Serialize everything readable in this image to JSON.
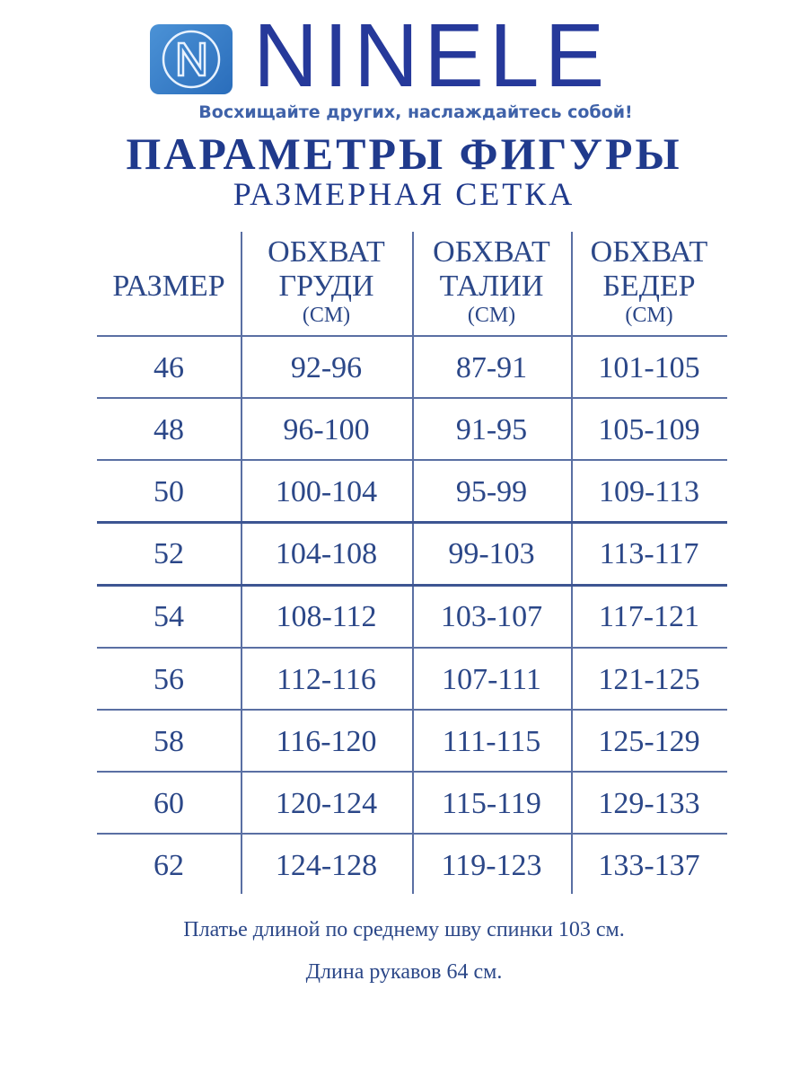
{
  "brand": {
    "name": "NINELE",
    "tagline": "Восхищайте других, наслаждайтесь собой!",
    "logo_icon": "n-in-circle-icon",
    "color": "#26399a"
  },
  "title": "ПАРАМЕТРЫ ФИГУРЫ",
  "subtitle": "РАЗМЕРНАЯ СЕТКА",
  "table": {
    "headers": [
      {
        "line1": "РАЗМЕР",
        "line2": "",
        "unit": ""
      },
      {
        "line1": "ОБХВАТ",
        "line2": "ГРУДИ",
        "unit": "(СМ)"
      },
      {
        "line1": "ОБХВАТ",
        "line2": "ТАЛИИ",
        "unit": "(СМ)"
      },
      {
        "line1": "ОБХВАТ",
        "line2": "БЕДЕР",
        "unit": "(СМ)"
      }
    ],
    "rows": [
      [
        "46",
        "92-96",
        "87-91",
        "101-105"
      ],
      [
        "48",
        "96-100",
        "91-95",
        "105-109"
      ],
      [
        "50",
        "100-104",
        "95-99",
        "109-113"
      ],
      [
        "52",
        "104-108",
        "99-103",
        "113-117"
      ],
      [
        "54",
        "108-112",
        "103-107",
        "117-121"
      ],
      [
        "56",
        "112-116",
        "107-111",
        "121-125"
      ],
      [
        "58",
        "116-120",
        "111-115",
        "125-129"
      ],
      [
        "60",
        "120-124",
        "115-119",
        "129-133"
      ],
      [
        "62",
        "124-128",
        "119-123",
        "133-137"
      ]
    ]
  },
  "notes": [
    "Платье длиной по среднему шву спинки 103 см.",
    "Длина рукавов 64 см."
  ]
}
